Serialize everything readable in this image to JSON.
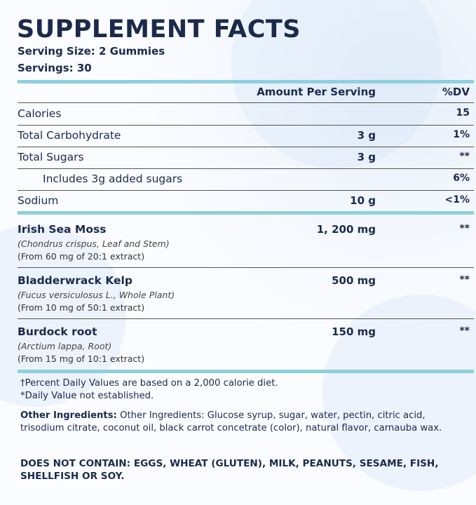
{
  "title": "SUPPLEMENT FACTS",
  "serving_size": "Serving Size: 2 Gummies",
  "servings": "Servings: 30",
  "header": {
    "amount": "Amount Per Serving",
    "dv": "%DV"
  },
  "nutrients": [
    {
      "name": "Calories",
      "dv": "15"
    },
    {
      "name": "Total Carbohydrate",
      "amount": "3 g",
      "dv": "1%"
    },
    {
      "name": "Total Sugars",
      "amount": "3 g",
      "dv": "**"
    },
    {
      "name": "Includes 3g added sugars",
      "dv": "6%"
    },
    {
      "name": "Sodium",
      "amount": "10 g",
      "dv": "<1%"
    }
  ],
  "ingredients": [
    {
      "name": "Irish Sea Moss",
      "latin": "(Chondrus crispus, Leaf and Stem)",
      "extract": "(From 60 mg of 20:1 extract)",
      "amount": "1, 200 mg",
      "dv": "**"
    },
    {
      "name": "Bladderwrack Kelp",
      "latin": "(Fucus versiculosus L., Whole Plant)",
      "extract": "(From 10 mg of 50:1 extract)",
      "amount": "500 mg",
      "dv": "**"
    },
    {
      "name": "Burdock root",
      "latin": "(Arctium lappa, Root)",
      "extract": "(From 15 mg of 10:1 extract)",
      "amount": "150 mg",
      "dv": "**"
    }
  ],
  "footnotes": [
    "†Percent Daily Values are based on a 2,000 calorie diet.",
    "*Daily Value not established."
  ],
  "other_ingredients": {
    "label": "Other Ingredients:",
    "text": "Other Ingredients: Glucose syrup, sugar, water, pectin, citric acid, trisodium citrate, coconut oil, black carrot concetrate (color), natural flavor, carnauba wax."
  },
  "does_not_contain": "DOES NOT CONTAIN: EGGS, WHEAT (GLUTEN), MILK, PEANUTS, SESAME, FISH, SHELLFISH OR SOY."
}
